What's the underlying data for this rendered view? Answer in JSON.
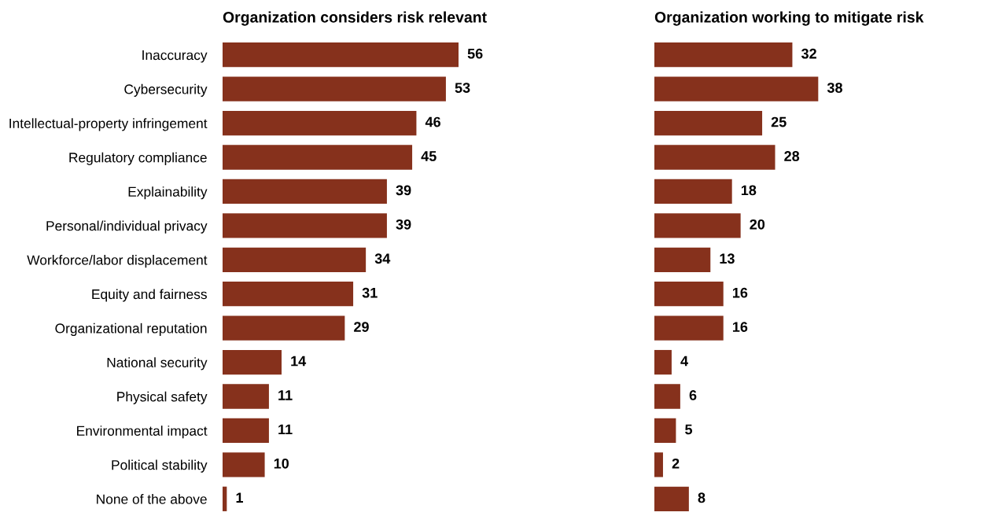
{
  "chart_data": [
    {
      "type": "bar",
      "orientation": "horizontal",
      "title": "Organization considers risk relevant",
      "categories": [
        "Inaccuracy",
        "Cybersecurity",
        "Intellectual-property infringement",
        "Regulatory compliance",
        "Explainability",
        "Personal/individual privacy",
        "Workforce/labor displacement",
        "Equity and fairness",
        "Organizational reputation",
        "National security",
        "Physical safety",
        "Environmental impact",
        "Political stability",
        "None of the above"
      ],
      "values": [
        56,
        53,
        46,
        45,
        39,
        39,
        34,
        31,
        29,
        14,
        11,
        11,
        10,
        1
      ],
      "color": "#86311c",
      "data_labels": true,
      "grid": false,
      "legend": false
    },
    {
      "type": "bar",
      "orientation": "horizontal",
      "title": "Organization working to mitigate risk",
      "categories": [
        null,
        null,
        null,
        null,
        null,
        null,
        null,
        null,
        null,
        null,
        null,
        null,
        null,
        null
      ],
      "values": [
        32,
        38,
        25,
        28,
        18,
        20,
        13,
        16,
        16,
        4,
        6,
        5,
        2,
        8
      ],
      "color": "#86311c",
      "data_labels": true,
      "grid": false,
      "legend": false
    }
  ]
}
